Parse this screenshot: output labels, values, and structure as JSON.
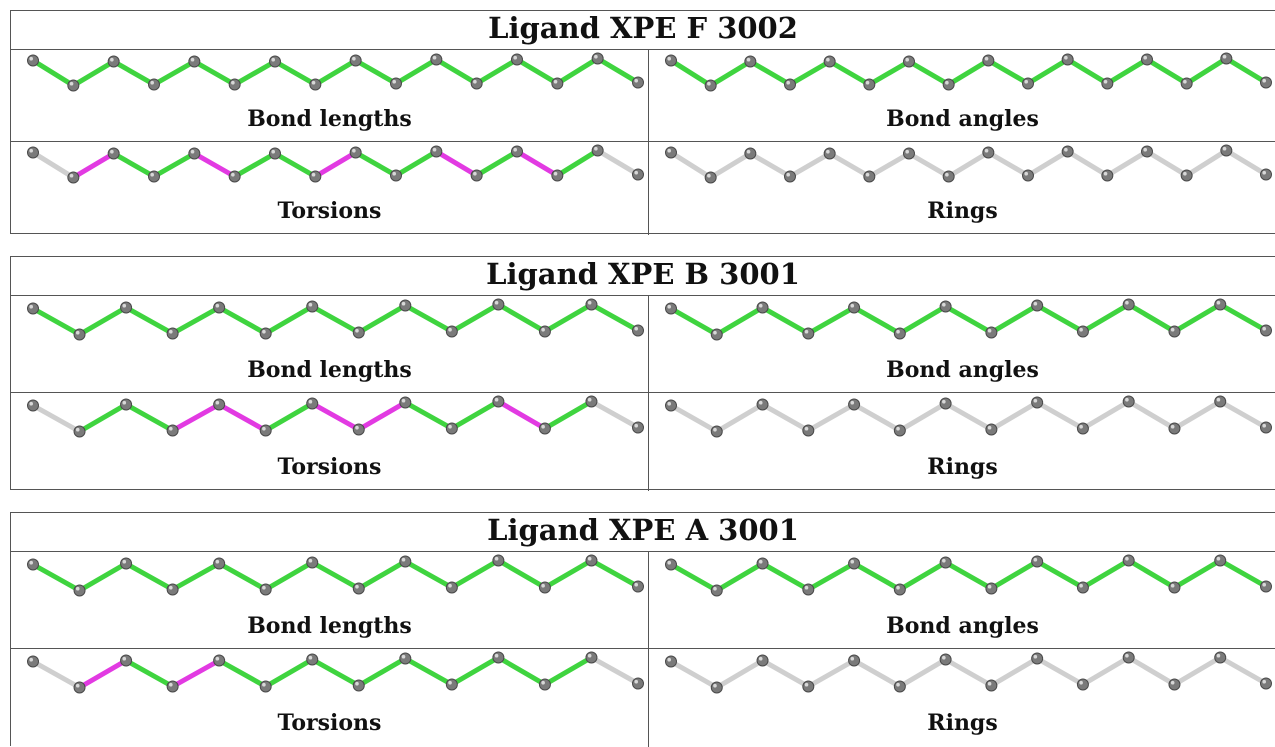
{
  "colors": {
    "bond_green": "#3fd43f",
    "bond_magenta": "#e23ae2",
    "bond_grey": "#cfcfcf",
    "atom_fill": "#7a7a7a",
    "atom_stroke": "#4a4a4a"
  },
  "blocks": [
    {
      "title": "Ligand XPE F 3002",
      "panels": [
        {
          "label": "Bond lengths",
          "bond_colors": [
            "green",
            "green",
            "green",
            "green",
            "green",
            "green",
            "green",
            "green",
            "green",
            "green",
            "green",
            "green",
            "green",
            "green",
            "green"
          ]
        },
        {
          "label": "Bond angles",
          "bond_colors": [
            "green",
            "green",
            "green",
            "green",
            "green",
            "green",
            "green",
            "green",
            "green",
            "green",
            "green",
            "green",
            "green",
            "green",
            "green"
          ]
        },
        {
          "label": "Torsions",
          "bond_colors": [
            "grey",
            "magenta",
            "green",
            "green",
            "magenta",
            "green",
            "green",
            "magenta",
            "green",
            "green",
            "magenta",
            "green",
            "magenta",
            "green",
            "grey"
          ]
        },
        {
          "label": "Rings",
          "bond_colors": [
            "grey",
            "grey",
            "grey",
            "grey",
            "grey",
            "grey",
            "grey",
            "grey",
            "grey",
            "grey",
            "grey",
            "grey",
            "grey",
            "grey",
            "grey"
          ]
        }
      ]
    },
    {
      "title": "Ligand XPE B 3001",
      "panels": [
        {
          "label": "Bond lengths",
          "bond_colors": [
            "green",
            "green",
            "green",
            "green",
            "green",
            "green",
            "green",
            "green",
            "green",
            "green",
            "green",
            "green",
            "green"
          ]
        },
        {
          "label": "Bond angles",
          "bond_colors": [
            "green",
            "green",
            "green",
            "green",
            "green",
            "green",
            "green",
            "green",
            "green",
            "green",
            "green",
            "green",
            "green"
          ]
        },
        {
          "label": "Torsions",
          "bond_colors": [
            "grey",
            "green",
            "green",
            "magenta",
            "magenta",
            "green",
            "magenta",
            "magenta",
            "green",
            "green",
            "magenta",
            "green",
            "grey"
          ]
        },
        {
          "label": "Rings",
          "bond_colors": [
            "grey",
            "grey",
            "grey",
            "grey",
            "grey",
            "grey",
            "grey",
            "grey",
            "grey",
            "grey",
            "grey",
            "grey",
            "grey"
          ]
        }
      ]
    },
    {
      "title": "Ligand XPE A 3001",
      "panels": [
        {
          "label": "Bond lengths",
          "bond_colors": [
            "green",
            "green",
            "green",
            "green",
            "green",
            "green",
            "green",
            "green",
            "green",
            "green",
            "green",
            "green",
            "green"
          ]
        },
        {
          "label": "Bond angles",
          "bond_colors": [
            "green",
            "green",
            "green",
            "green",
            "green",
            "green",
            "green",
            "green",
            "green",
            "green",
            "green",
            "green",
            "green"
          ]
        },
        {
          "label": "Torsions",
          "bond_colors": [
            "grey",
            "magenta",
            "green",
            "magenta",
            "green",
            "green",
            "green",
            "green",
            "green",
            "green",
            "green",
            "green",
            "grey"
          ]
        },
        {
          "label": "Rings",
          "bond_colors": [
            "grey",
            "grey",
            "grey",
            "grey",
            "grey",
            "grey",
            "grey",
            "grey",
            "grey",
            "grey",
            "grey",
            "grey",
            "grey"
          ]
        }
      ]
    }
  ]
}
